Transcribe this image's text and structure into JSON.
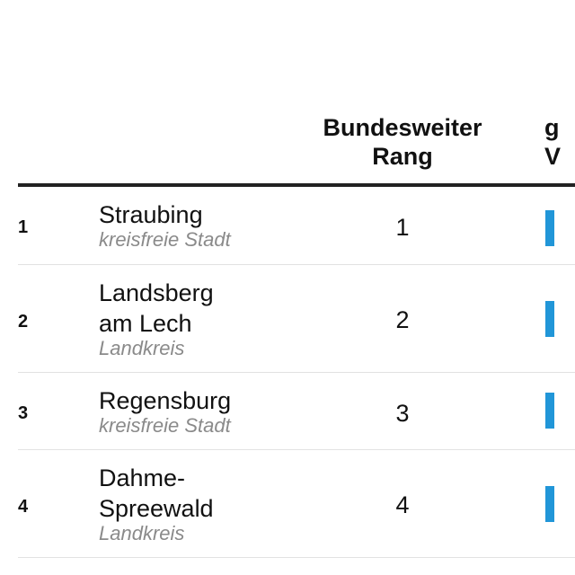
{
  "table": {
    "columns": {
      "national_rank": "Bundesweiter\nRang",
      "cut_off_column_line1": "g",
      "cut_off_column_line2": "V"
    },
    "rows": [
      {
        "rank": "1",
        "name": "Straubing",
        "type": "kreisfreie Stadt",
        "national_rank": "1"
      },
      {
        "rank": "2",
        "name": "Landsberg\nam Lech",
        "type": "Landkreis",
        "national_rank": "2"
      },
      {
        "rank": "3",
        "name": "Regensburg",
        "type": "kreisfreie Stadt",
        "national_rank": "3"
      },
      {
        "rank": "4",
        "name": "Dahme-\nSpreewald",
        "type": "Landkreis",
        "national_rank": "4"
      }
    ]
  },
  "colors": {
    "bar": "#2196d8",
    "header_rule": "#222222",
    "muted_text": "#8a8a8a"
  }
}
